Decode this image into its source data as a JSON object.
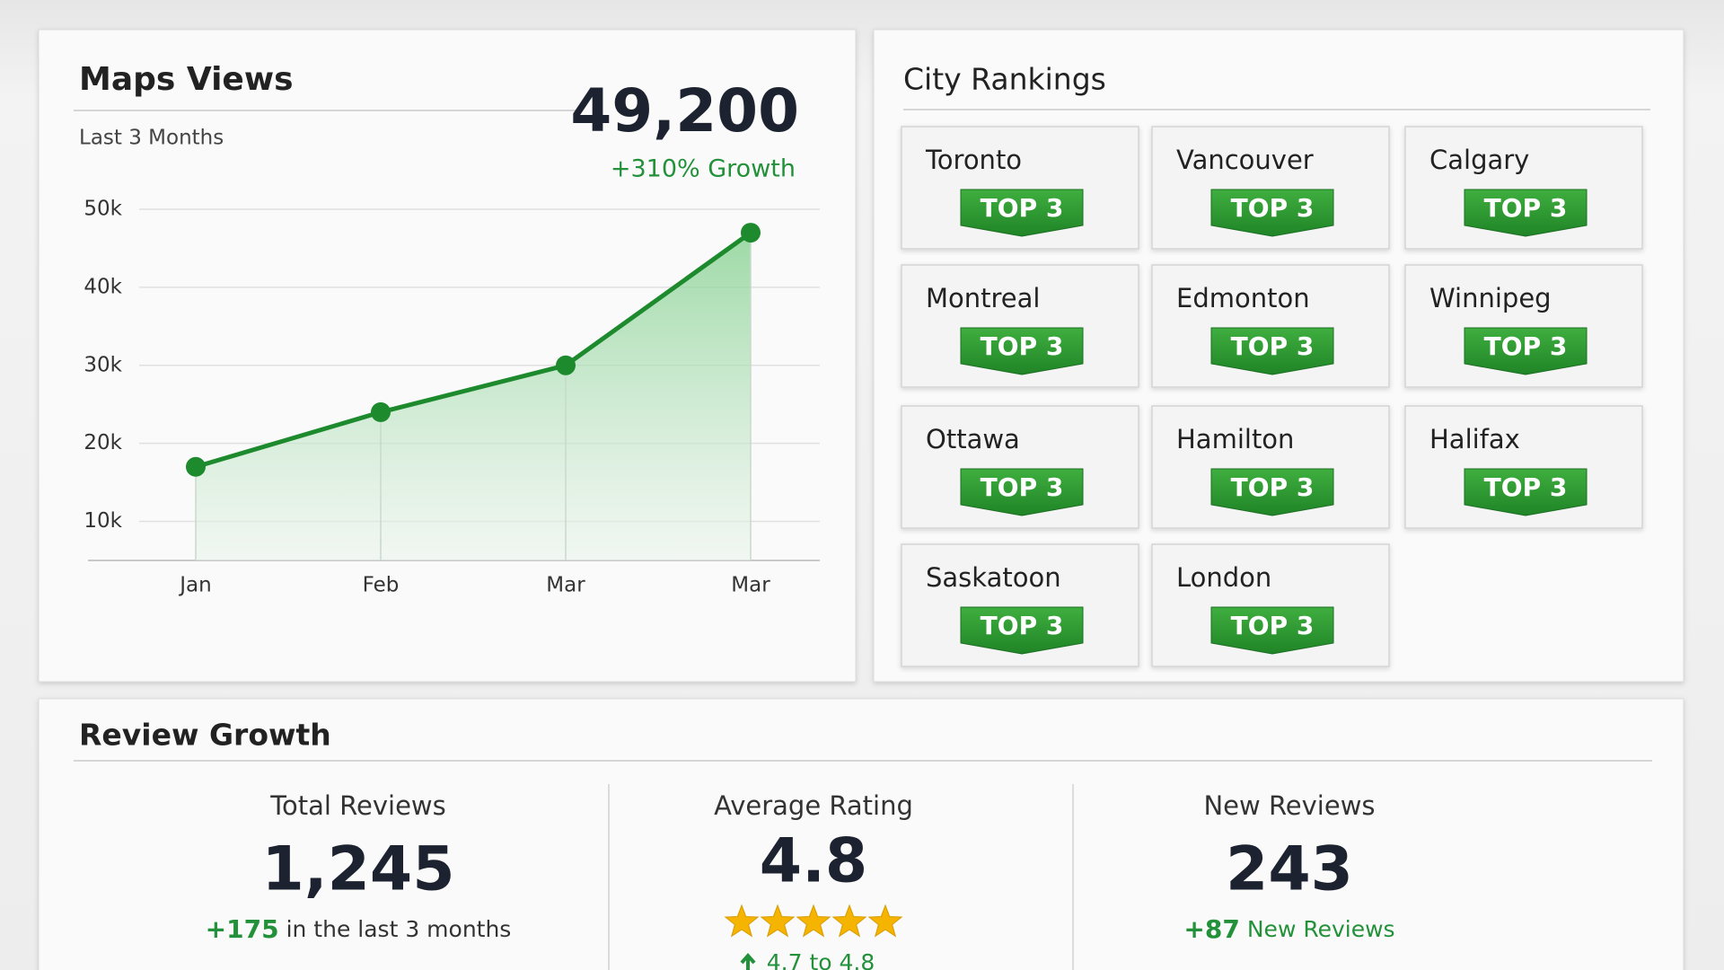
{
  "maps_views": {
    "title": "Maps Views",
    "subtitle": "Last 3 Months",
    "total": "49,200",
    "growth": "+310% Growth"
  },
  "chart_data": {
    "type": "line",
    "categories": [
      "Jan",
      "Feb",
      "Mar",
      "Mar"
    ],
    "values": [
      17000,
      24000,
      30000,
      47000
    ],
    "color": "#1e8a2e",
    "ylim": [
      5000,
      50000
    ],
    "yticks": [
      {
        "value": 10000,
        "label": "10k"
      },
      {
        "value": 20000,
        "label": "20k"
      },
      {
        "value": 30000,
        "label": "30k"
      },
      {
        "value": 40000,
        "label": "40k"
      },
      {
        "value": 50000,
        "label": "50k"
      }
    ],
    "grid": true
  },
  "city_rankings": {
    "title": "City Rankings",
    "cities": [
      {
        "name": "Toronto",
        "badge": "TOP 3"
      },
      {
        "name": "Vancouver",
        "badge": "TOP 3"
      },
      {
        "name": "Calgary",
        "badge": "TOP 3"
      },
      {
        "name": "Montreal",
        "badge": "TOP 3"
      },
      {
        "name": "Edmonton",
        "badge": "TOP 3"
      },
      {
        "name": "Winnipeg",
        "badge": "TOP 3"
      },
      {
        "name": "Ottawa",
        "badge": "TOP 3"
      },
      {
        "name": "Hamilton",
        "badge": "TOP 3"
      },
      {
        "name": "Halifax",
        "badge": "TOP 3"
      },
      {
        "name": "Saskatoon",
        "badge": "TOP 3"
      },
      {
        "name": "London",
        "badge": "TOP 3"
      }
    ]
  },
  "review_growth": {
    "title": "Review Growth",
    "stats": [
      {
        "label": "Total Reviews",
        "value": "1,245",
        "change": "+175",
        "note": "in the last 3 months"
      },
      {
        "label": "Average Rating",
        "value": "4.8",
        "change": "4.7 to 4.8"
      },
      {
        "label": "New Reviews",
        "value": "243",
        "change": "+87",
        "note": "New Reviews"
      }
    ]
  }
}
